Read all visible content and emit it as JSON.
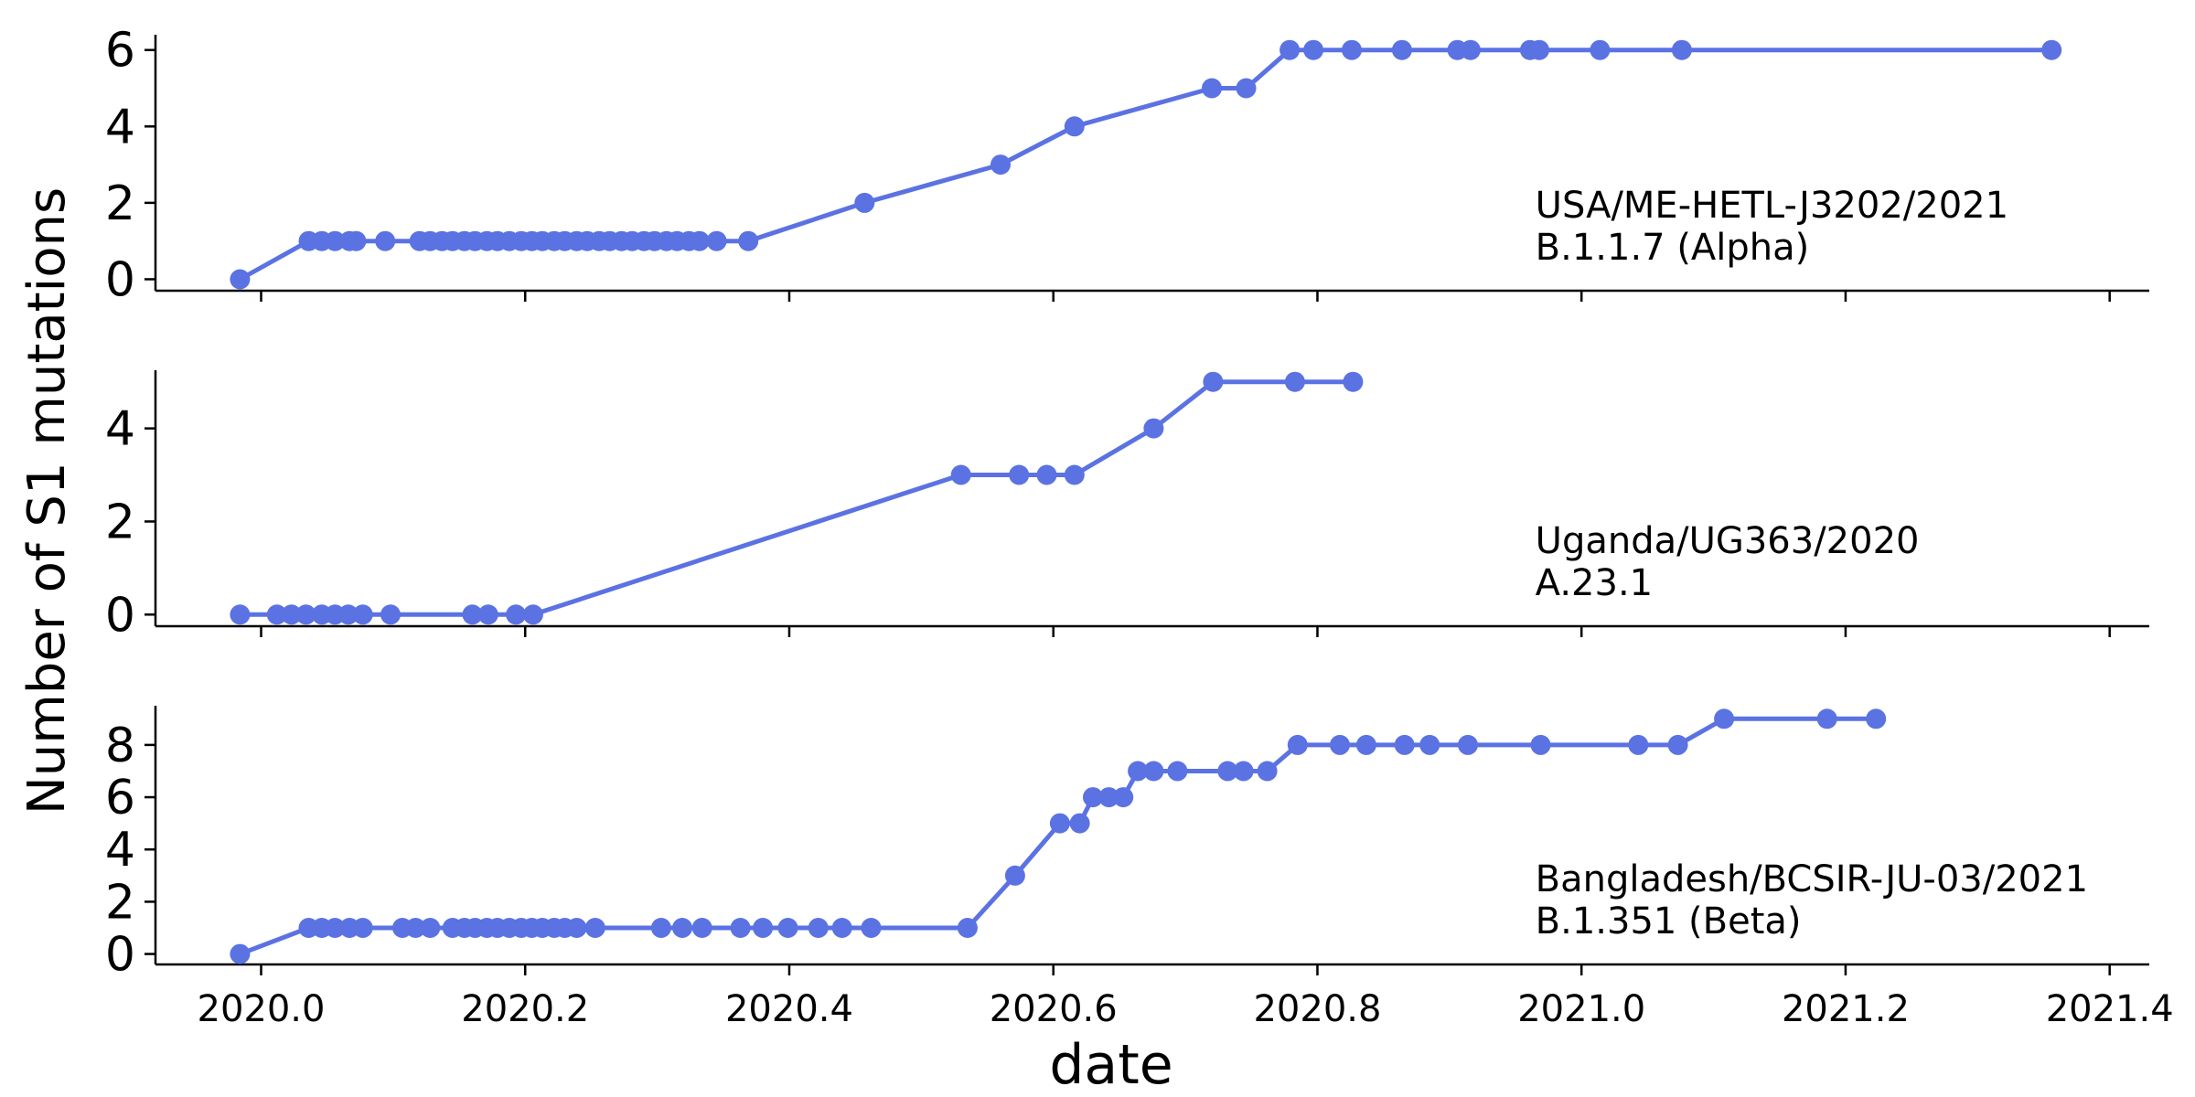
{
  "figure": {
    "ylabel": "Number of S1 mutations",
    "xlabel": "date",
    "x_ticks": [
      "2020.0",
      "2020.2",
      "2020.4",
      "2020.6",
      "2020.8",
      "2021.0",
      "2021.2",
      "2021.4"
    ],
    "accent_color": "#5b72e3"
  },
  "chart_data": [
    {
      "type": "line",
      "annotation": [
        "USA/ME-HETL-J3202/2021",
        "B.1.1.7 (Alpha)"
      ],
      "xlim": [
        2019.92,
        2021.43
      ],
      "ylim": [
        -0.3,
        6.4
      ],
      "y_ticks": [
        0,
        2,
        4,
        6
      ],
      "x_ticks": [
        2020.0,
        2020.2,
        2020.4,
        2020.6,
        2020.8,
        2021.0,
        2021.2,
        2021.4
      ],
      "grid": false,
      "x": [
        2019.984,
        2020.036,
        2020.046,
        2020.056,
        2020.067,
        2020.072,
        2020.094,
        2020.12,
        2020.128,
        2020.137,
        2020.145,
        2020.154,
        2020.162,
        2020.171,
        2020.179,
        2020.188,
        2020.197,
        2020.205,
        2020.213,
        2020.222,
        2020.23,
        2020.239,
        2020.247,
        2020.256,
        2020.264,
        2020.273,
        2020.281,
        2020.29,
        2020.298,
        2020.307,
        2020.315,
        2020.324,
        2020.332,
        2020.345,
        2020.369,
        2020.457,
        2020.56,
        2020.616,
        2020.72,
        2020.746,
        2020.779,
        2020.797,
        2020.826,
        2020.864,
        2020.906,
        2020.916,
        2020.961,
        2020.968,
        2021.014,
        2021.076,
        2021.356
      ],
      "y": [
        0,
        1,
        1,
        1,
        1,
        1,
        1,
        1,
        1,
        1,
        1,
        1,
        1,
        1,
        1,
        1,
        1,
        1,
        1,
        1,
        1,
        1,
        1,
        1,
        1,
        1,
        1,
        1,
        1,
        1,
        1,
        1,
        1,
        1,
        1,
        2,
        3,
        4,
        5,
        5,
        6,
        6,
        6,
        6,
        6,
        6,
        6,
        6,
        6,
        6,
        6
      ]
    },
    {
      "type": "line",
      "annotation": [
        "Uganda/UG363/2020",
        "A.23.1"
      ],
      "xlim": [
        2019.92,
        2021.43
      ],
      "ylim": [
        -0.25,
        5.25
      ],
      "y_ticks": [
        0,
        2,
        4
      ],
      "x_ticks": [
        2020.0,
        2020.2,
        2020.4,
        2020.6,
        2020.8,
        2021.0,
        2021.2,
        2021.4
      ],
      "grid": false,
      "x": [
        2019.984,
        2020.012,
        2020.023,
        2020.034,
        2020.046,
        2020.056,
        2020.066,
        2020.077,
        2020.098,
        2020.16,
        2020.172,
        2020.193,
        2020.206,
        2020.53,
        2020.574,
        2020.595,
        2020.616,
        2020.676,
        2020.721,
        2020.783,
        2020.827
      ],
      "y": [
        0,
        0,
        0,
        0,
        0,
        0,
        0,
        0,
        0,
        0,
        0,
        0,
        0,
        3,
        3,
        3,
        3,
        4,
        5,
        5,
        5
      ]
    },
    {
      "type": "line",
      "annotation": [
        "Bangladesh/BCSIR-JU-03/2021",
        "B.1.351 (Beta)"
      ],
      "xlim": [
        2019.92,
        2021.43
      ],
      "ylim": [
        -0.4,
        9.5
      ],
      "y_ticks": [
        0,
        2,
        4,
        6,
        8
      ],
      "x_ticks": [
        2020.0,
        2020.2,
        2020.4,
        2020.6,
        2020.8,
        2021.0,
        2021.2,
        2021.4
      ],
      "grid": false,
      "x": [
        2019.984,
        2020.036,
        2020.046,
        2020.056,
        2020.067,
        2020.077,
        2020.107,
        2020.117,
        2020.128,
        2020.145,
        2020.154,
        2020.162,
        2020.171,
        2020.179,
        2020.188,
        2020.197,
        2020.205,
        2020.213,
        2020.222,
        2020.23,
        2020.239,
        2020.253,
        2020.303,
        2020.319,
        2020.334,
        2020.363,
        2020.38,
        2020.399,
        2020.422,
        2020.44,
        2020.462,
        2020.535,
        2020.571,
        2020.605,
        2020.62,
        2020.63,
        2020.642,
        2020.653,
        2020.664,
        2020.676,
        2020.694,
        2020.732,
        2020.744,
        2020.762,
        2020.785,
        2020.817,
        2020.837,
        2020.866,
        2020.885,
        2020.914,
        2020.969,
        2021.043,
        2021.073,
        2021.108,
        2021.186,
        2021.223
      ],
      "y": [
        0,
        1,
        1,
        1,
        1,
        1,
        1,
        1,
        1,
        1,
        1,
        1,
        1,
        1,
        1,
        1,
        1,
        1,
        1,
        1,
        1,
        1,
        1,
        1,
        1,
        1,
        1,
        1,
        1,
        1,
        1,
        1,
        3,
        5,
        5,
        6,
        6,
        6,
        7,
        7,
        7,
        7,
        7,
        7,
        8,
        8,
        8,
        8,
        8,
        8,
        8,
        8,
        8,
        9,
        9,
        9
      ]
    }
  ]
}
